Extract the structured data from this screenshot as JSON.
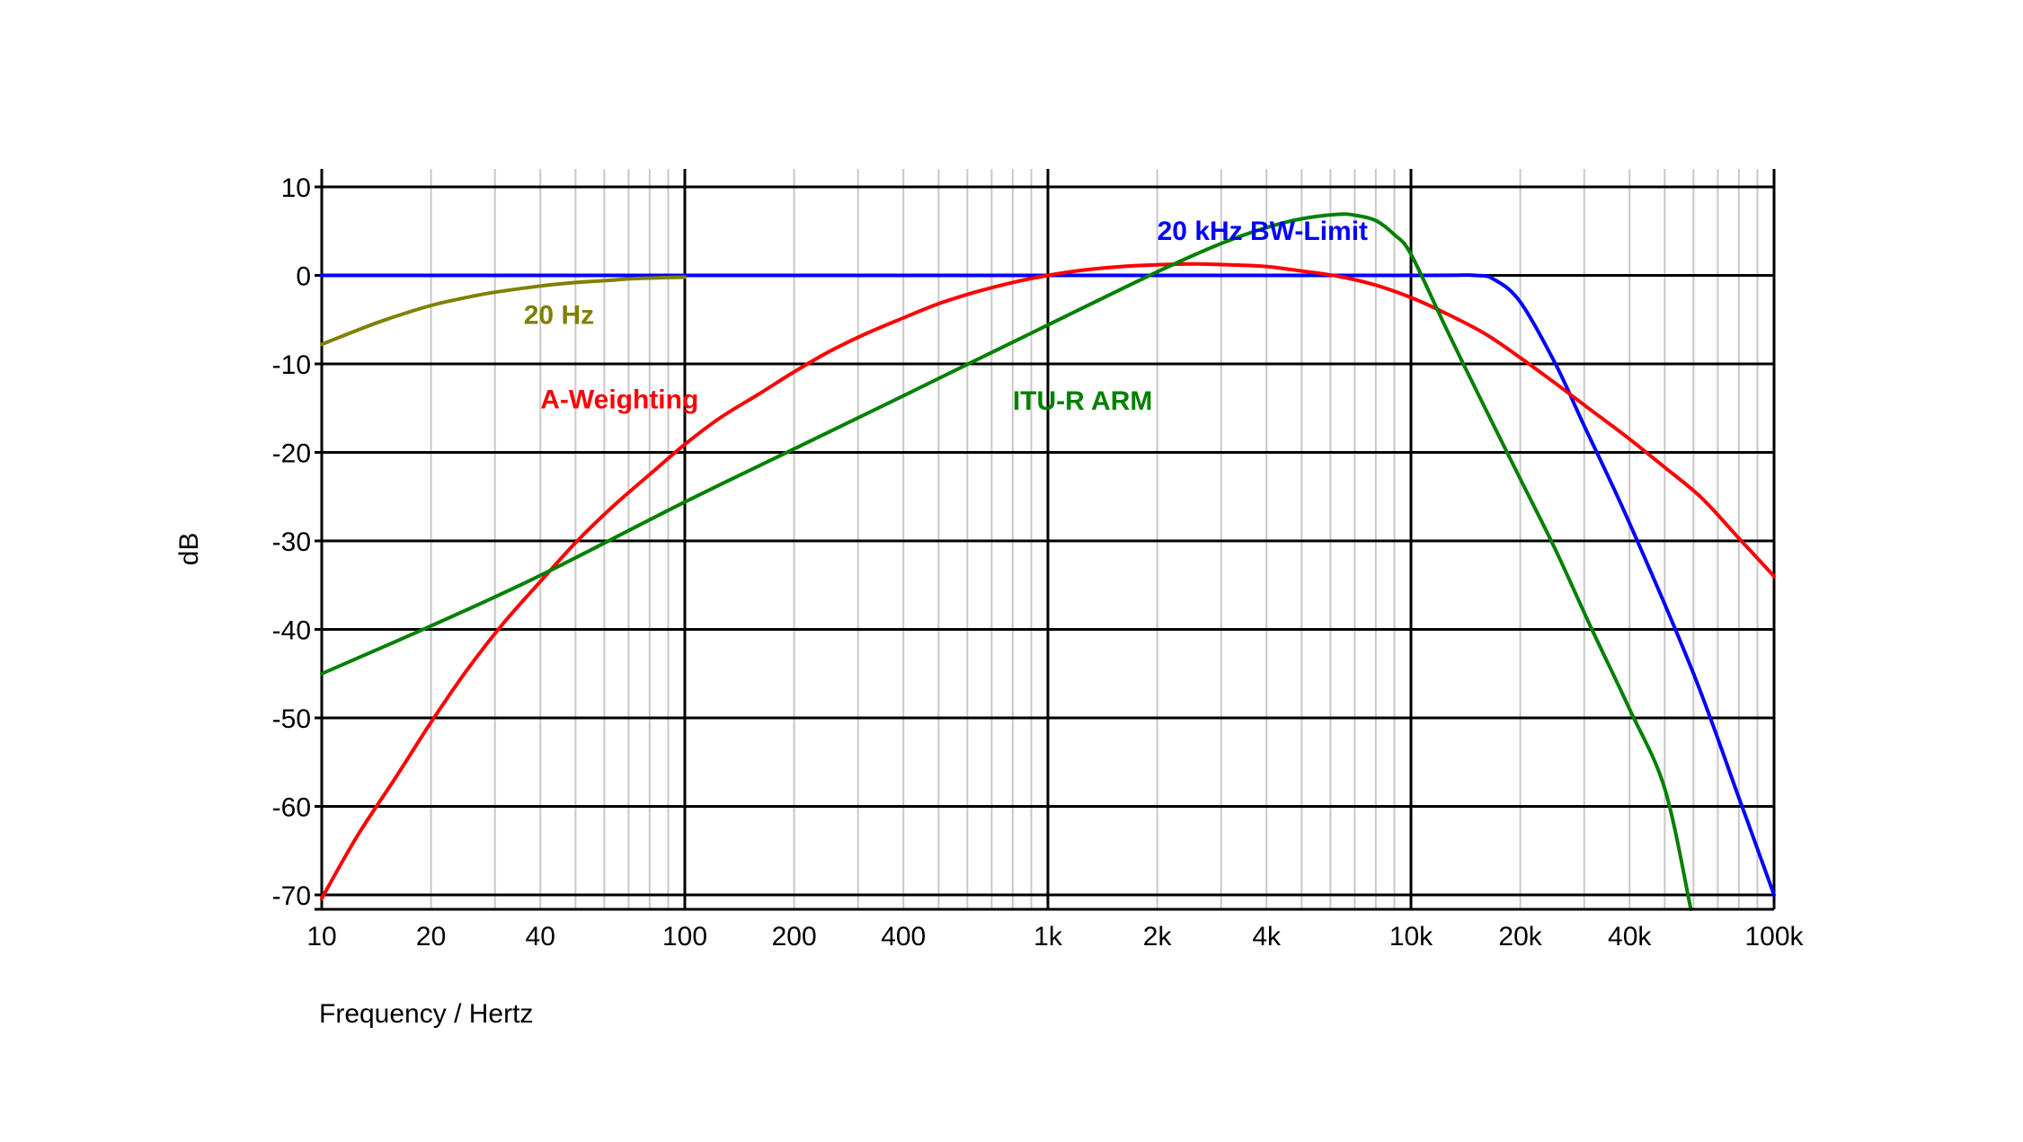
{
  "chart_data": {
    "type": "line",
    "title": "",
    "xlabel": "Frequency / Hertz",
    "ylabel": "dB",
    "x_scale": "log",
    "xlim": [
      10,
      100000
    ],
    "ylim": [
      -70,
      10
    ],
    "grid": true,
    "legend": "none",
    "x_ticks": [
      {
        "value": 10,
        "label": "10"
      },
      {
        "value": 20,
        "label": "20"
      },
      {
        "value": 40,
        "label": "40"
      },
      {
        "value": 100,
        "label": "100"
      },
      {
        "value": 200,
        "label": "200"
      },
      {
        "value": 400,
        "label": "400"
      },
      {
        "value": 1000,
        "label": "1k"
      },
      {
        "value": 2000,
        "label": "2k"
      },
      {
        "value": 4000,
        "label": "4k"
      },
      {
        "value": 10000,
        "label": "10k"
      },
      {
        "value": 20000,
        "label": "20k"
      },
      {
        "value": 40000,
        "label": "40k"
      },
      {
        "value": 100000,
        "label": "100k"
      }
    ],
    "y_ticks": [
      {
        "value": 10,
        "label": "10"
      },
      {
        "value": 0,
        "label": "0"
      },
      {
        "value": -10,
        "label": "-10"
      },
      {
        "value": -20,
        "label": "-20"
      },
      {
        "value": -30,
        "label": "-30"
      },
      {
        "value": -40,
        "label": "-40"
      },
      {
        "value": -50,
        "label": "-50"
      },
      {
        "value": -60,
        "label": "-60"
      },
      {
        "value": -70,
        "label": "-70"
      }
    ],
    "series": [
      {
        "name": "20 kHz BW-Limit",
        "color": "#0000ff",
        "x": [
          10,
          100,
          1000,
          10000,
          15000,
          17000,
          20000,
          25000,
          30000,
          40000,
          60000,
          80000,
          100000
        ],
        "y": [
          0,
          0,
          0,
          0,
          0,
          -0.5,
          -3,
          -10,
          -17,
          -28,
          -45,
          -59,
          -70
        ]
      },
      {
        "name": "20 Hz",
        "color": "#808000",
        "x": [
          10,
          12,
          15,
          20,
          25,
          30,
          40,
          50,
          60,
          70,
          80,
          100
        ],
        "y": [
          -7.8,
          -6.5,
          -5,
          -3.4,
          -2.5,
          -1.9,
          -1.2,
          -0.8,
          -0.6,
          -0.4,
          -0.3,
          -0.2
        ]
      },
      {
        "name": "A-Weighting",
        "color": "#ff0000",
        "x": [
          10,
          12.5,
          16,
          20,
          25,
          31.5,
          40,
          50,
          63,
          80,
          100,
          125,
          160,
          200,
          250,
          315,
          400,
          500,
          630,
          800,
          1000,
          1250,
          1600,
          2000,
          2500,
          3150,
          4000,
          5000,
          6300,
          8000,
          10000,
          12500,
          16000,
          20000,
          25000,
          31500,
          40000,
          50000,
          63000,
          80000,
          100000
        ],
        "y": [
          -70.4,
          -63.4,
          -56.7,
          -50.5,
          -44.7,
          -39.4,
          -34.6,
          -30.2,
          -26.2,
          -22.5,
          -19.1,
          -16.1,
          -13.4,
          -10.9,
          -8.6,
          -6.6,
          -4.8,
          -3.2,
          -1.9,
          -0.8,
          0,
          0.6,
          1.0,
          1.2,
          1.3,
          1.2,
          1.0,
          0.5,
          -0.1,
          -1.1,
          -2.5,
          -4.3,
          -6.6,
          -9.3,
          -12.2,
          -15.3,
          -18.5,
          -21.7,
          -25.1,
          -29.7,
          -34.0
        ]
      },
      {
        "name": "ITU-R ARM",
        "color": "#008000",
        "x": [
          10,
          20,
          40,
          100,
          200,
          400,
          1000,
          2000,
          3000,
          4000,
          5000,
          6300,
          7000,
          8000,
          9000,
          10000,
          12500,
          16000,
          20000,
          25000,
          31500,
          40000,
          50000,
          59000
        ],
        "y": [
          -45,
          -39.6,
          -33.9,
          -25.6,
          -19.6,
          -13.6,
          -5.6,
          0.4,
          3.6,
          5.4,
          6.4,
          6.9,
          6.8,
          6.2,
          4.6,
          2.4,
          -6,
          -15,
          -23,
          -31,
          -40,
          -49,
          -58,
          -72
        ]
      }
    ],
    "annotations": [
      {
        "text": "20 kHz BW-Limit",
        "x": 2000,
        "y": 4,
        "color": "#0000ff"
      },
      {
        "text": "20 Hz",
        "x": 36,
        "y": -5.5,
        "color": "#808000"
      },
      {
        "text": "A-Weighting",
        "x": 40,
        "y": -15,
        "color": "#ff0000"
      },
      {
        "text": "ITU-R ARM",
        "x": 800,
        "y": -15.2,
        "color": "#008000"
      }
    ]
  }
}
